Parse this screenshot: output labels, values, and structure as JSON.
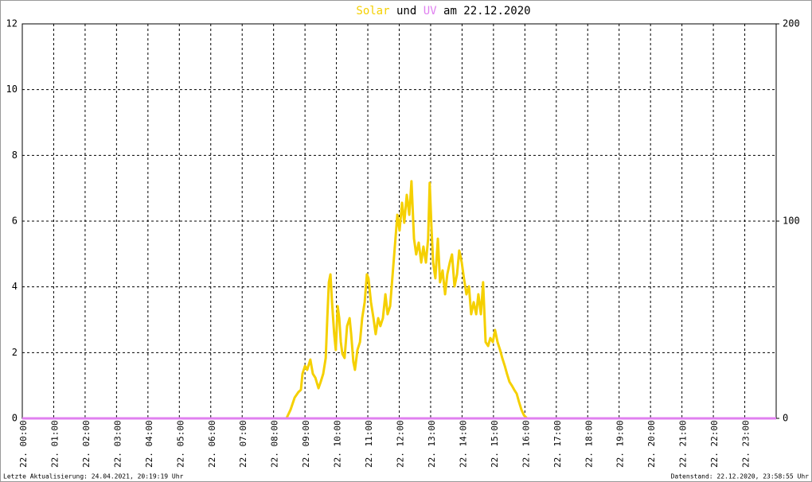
{
  "chart_data": {
    "type": "line",
    "title": {
      "connector": "und",
      "suffix": "am 22.12.2020"
    },
    "footer_left": "Letzte Aktualisierung: 24.04.2021, 20:19:19 Uhr",
    "footer_right": "Datenstand: 22.12.2020, 23:58:55 Uhr",
    "grid": true,
    "xlim": [
      0,
      24
    ],
    "xticks": [
      {
        "value": 0,
        "label": "22. 00:00"
      },
      {
        "value": 1,
        "label": "22. 01:00"
      },
      {
        "value": 2,
        "label": "22. 02:00"
      },
      {
        "value": 3,
        "label": "22. 03:00"
      },
      {
        "value": 4,
        "label": "22. 04:00"
      },
      {
        "value": 5,
        "label": "22. 05:00"
      },
      {
        "value": 6,
        "label": "22. 06:00"
      },
      {
        "value": 7,
        "label": "22. 07:00"
      },
      {
        "value": 8,
        "label": "22. 08:00"
      },
      {
        "value": 9,
        "label": "22. 09:00"
      },
      {
        "value": 10,
        "label": "22. 10:00"
      },
      {
        "value": 11,
        "label": "22. 11:00"
      },
      {
        "value": 12,
        "label": "22. 12:00"
      },
      {
        "value": 13,
        "label": "22. 13:00"
      },
      {
        "value": 14,
        "label": "22. 14:00"
      },
      {
        "value": 15,
        "label": "22. 15:00"
      },
      {
        "value": 16,
        "label": "22. 16:00"
      },
      {
        "value": 17,
        "label": "22. 17:00"
      },
      {
        "value": 18,
        "label": "22. 18:00"
      },
      {
        "value": 19,
        "label": "22. 19:00"
      },
      {
        "value": 20,
        "label": "22. 20:00"
      },
      {
        "value": 21,
        "label": "22. 21:00"
      },
      {
        "value": 22,
        "label": "22. 22:00"
      },
      {
        "value": 23,
        "label": "22. 23:00"
      }
    ],
    "ylim": [
      0,
      12
    ],
    "yticks": [
      0,
      2,
      4,
      6,
      8,
      10,
      12
    ],
    "y2lim": [
      0,
      200
    ],
    "y2ticks": [
      0,
      100,
      200
    ],
    "series": [
      {
        "name": "Solar",
        "color": "#f5d000",
        "axis": "y2",
        "x": [
          0,
          8.41,
          8.54,
          8.67,
          8.79,
          8.87,
          8.92,
          9.0,
          9.07,
          9.17,
          9.25,
          9.33,
          9.43,
          9.5,
          9.58,
          9.66,
          9.71,
          9.76,
          9.81,
          9.86,
          9.93,
          9.98,
          10.04,
          10.09,
          10.14,
          10.19,
          10.26,
          10.34,
          10.42,
          10.47,
          10.54,
          10.59,
          10.67,
          10.75,
          10.82,
          10.9,
          10.97,
          11.02,
          11.1,
          11.18,
          11.25,
          11.33,
          11.4,
          11.48,
          11.56,
          11.63,
          11.71,
          11.78,
          11.86,
          11.94,
          12.01,
          12.09,
          12.16,
          12.24,
          12.32,
          12.39,
          12.47,
          12.54,
          12.62,
          12.7,
          12.77,
          12.85,
          12.92,
          12.97,
          13.03,
          13.08,
          13.15,
          13.23,
          13.3,
          13.38,
          13.46,
          13.53,
          13.61,
          13.68,
          13.76,
          13.84,
          13.91,
          13.99,
          14.06,
          14.14,
          14.22,
          14.29,
          14.37,
          14.45,
          14.52,
          14.6,
          14.67,
          14.75,
          14.83,
          14.9,
          14.98,
          15.05,
          15.13,
          15.21,
          15.28,
          15.36,
          15.43,
          15.51,
          15.59,
          15.66,
          15.74,
          15.81,
          15.89,
          15.97,
          16.07,
          24
        ],
        "values": [
          0,
          0,
          4.4,
          10.5,
          13.3,
          14.5,
          22.6,
          26.6,
          24.6,
          29.8,
          22.6,
          20.6,
          15.3,
          18.5,
          22.6,
          30.6,
          50.8,
          69.0,
          73.0,
          58.9,
          42.7,
          34.7,
          56.9,
          50.8,
          38.7,
          32.7,
          30.6,
          46.8,
          50.8,
          42.7,
          28.6,
          24.6,
          34.7,
          38.7,
          50.8,
          58.9,
          73.0,
          71.0,
          58.9,
          50.8,
          42.7,
          50.8,
          46.8,
          50.8,
          62.9,
          52.8,
          56.9,
          71.0,
          87.1,
          103.2,
          95.2,
          109.3,
          99.2,
          113.3,
          103.2,
          120.2,
          91.1,
          83.1,
          89.1,
          79.0,
          87.1,
          79.0,
          91.1,
          119.4,
          95.2,
          79.0,
          71.0,
          91.1,
          69.0,
          75.0,
          62.9,
          73.0,
          79.0,
          83.1,
          66.9,
          73.0,
          85.1,
          79.0,
          71.0,
          62.9,
          66.9,
          52.8,
          58.9,
          52.8,
          62.9,
          52.8,
          69.0,
          38.7,
          36.7,
          40.7,
          38.7,
          44.8,
          38.7,
          34.7,
          30.6,
          26.6,
          22.6,
          18.5,
          16.5,
          14.5,
          12.5,
          8.5,
          4.4,
          1.6,
          0,
          0
        ]
      },
      {
        "name": "UV",
        "color": "#e080f0",
        "x": [
          0,
          24
        ],
        "values": [
          0,
          0
        ]
      }
    ]
  }
}
